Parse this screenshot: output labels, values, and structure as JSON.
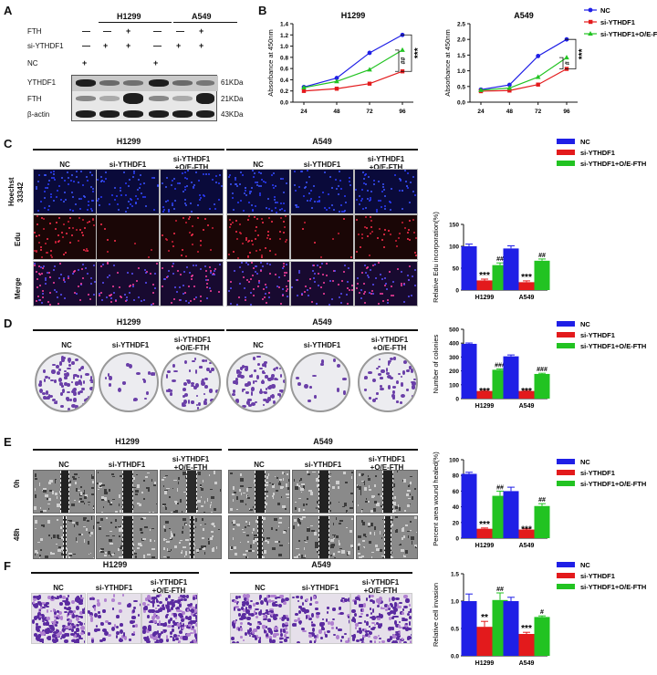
{
  "panels": {
    "a": "A",
    "b": "B",
    "c": "C",
    "d": "D",
    "e": "E",
    "f": "F"
  },
  "western": {
    "groups": [
      "H1299",
      "A549"
    ],
    "rows": [
      {
        "label": "FTH",
        "marks": [
          "—",
          "—",
          "+",
          "—",
          "—",
          "+"
        ]
      },
      {
        "label": "si-YTHDF1",
        "marks": [
          "—",
          "+",
          "+",
          "—",
          "+",
          "+"
        ]
      },
      {
        "label": "NC",
        "marks": [
          "+",
          "",
          "",
          "+",
          "",
          ""
        ]
      }
    ],
    "bands": [
      {
        "label": "YTHDF1",
        "size": "61KDa"
      },
      {
        "label": "FTH",
        "size": "21KDa"
      },
      {
        "label": "β-actin",
        "size": "43KDa"
      }
    ]
  },
  "legend_labels": [
    "NC",
    "si-YTHDF1",
    "si-YTHDF1+O/E-FTH"
  ],
  "colors": {
    "nc": "#1f1fe6",
    "si": "#e31a1c",
    "fth": "#22c322"
  },
  "cck8": {
    "ylabel": "Absorbance at 450nm",
    "charts": [
      {
        "title": "H1299",
        "sig_outer": "***",
        "sig_inner": "##"
      },
      {
        "title": "A549",
        "sig_outer": "***",
        "sig_inner": "#"
      }
    ]
  },
  "edu": {
    "groups": [
      "H1299",
      "A549"
    ],
    "conditions": [
      "NC",
      "si-YTHDF1",
      "si-YTHDF1",
      "+O/E-FTH"
    ],
    "rows": [
      "Hoechst",
      "33342",
      "Edu",
      "Merge"
    ],
    "ylabel": "Relative Edu incorporation(%)"
  },
  "colony": {
    "groups": [
      "H1299",
      "A549"
    ],
    "conditions": [
      "NC",
      "si-YTHDF1",
      "si-YTHDF1",
      "+O/E-FTH"
    ],
    "ylabel": "Number of colonies"
  },
  "wound": {
    "groups": [
      "H1299",
      "A549"
    ],
    "conditions": [
      "NC",
      "si-YTHDF1",
      "si-YTHDF1",
      "+O/E-FTH"
    ],
    "rows": [
      "0h",
      "48h"
    ],
    "ylabel": "Percent area wound healed(%)"
  },
  "invasion": {
    "groups": [
      "H1299",
      "A549"
    ],
    "conditions": [
      "NC",
      "si-YTHDF1",
      "si-YTHDF1",
      "+O/E-FTH"
    ],
    "ylabel": "Relative cell invasion"
  },
  "chart_data": [
    {
      "type": "line",
      "title": "H1299",
      "xlabel": "",
      "ylabel": "Absorbance at 450nm",
      "x": [
        24,
        48,
        72,
        96
      ],
      "ylim": [
        0,
        1.4
      ],
      "yticks": [
        0.0,
        0.2,
        0.4,
        0.6,
        0.8,
        1.0,
        1.2,
        1.4
      ],
      "series": [
        {
          "name": "NC",
          "values": [
            0.27,
            0.43,
            0.88,
            1.2
          ]
        },
        {
          "name": "si-YTHDF1",
          "values": [
            0.2,
            0.24,
            0.33,
            0.55
          ]
        },
        {
          "name": "si-YTHDF1+O/E-FTH",
          "values": [
            0.26,
            0.37,
            0.58,
            0.93
          ]
        }
      ]
    },
    {
      "type": "line",
      "title": "A549",
      "xlabel": "",
      "ylabel": "Absorbance at 450nm",
      "x": [
        24,
        48,
        72,
        96
      ],
      "ylim": [
        0,
        2.5
      ],
      "yticks": [
        0.0,
        0.5,
        1.0,
        1.5,
        2.0,
        2.5
      ],
      "series": [
        {
          "name": "NC",
          "values": [
            0.4,
            0.55,
            1.47,
            2.0
          ]
        },
        {
          "name": "si-YTHDF1",
          "values": [
            0.35,
            0.37,
            0.56,
            1.06
          ]
        },
        {
          "name": "si-YTHDF1+O/E-FTH",
          "values": [
            0.38,
            0.45,
            0.8,
            1.42
          ]
        }
      ]
    },
    {
      "type": "bar",
      "title": "",
      "ylabel": "Relative Edu incorporation(%)",
      "categories": [
        "H1299",
        "A549"
      ],
      "ylim": [
        0,
        150
      ],
      "yticks": [
        0,
        50,
        100,
        150
      ],
      "series": [
        {
          "name": "NC",
          "values": [
            100,
            95
          ],
          "errors": [
            5,
            6
          ]
        },
        {
          "name": "si-YTHDF1",
          "values": [
            22,
            18
          ],
          "errors": [
            3,
            3
          ],
          "marks": [
            "***",
            "***"
          ]
        },
        {
          "name": "si-YTHDF1+O/E-FTH",
          "values": [
            57,
            67
          ],
          "errors": [
            5,
            4
          ],
          "marks": [
            "##",
            "##"
          ]
        }
      ]
    },
    {
      "type": "bar",
      "title": "",
      "ylabel": "Number of colonies",
      "categories": [
        "H1299",
        "A549"
      ],
      "ylim": [
        0,
        500
      ],
      "yticks": [
        0,
        100,
        200,
        300,
        400,
        500
      ],
      "series": [
        {
          "name": "NC",
          "values": [
            395,
            305
          ],
          "errors": [
            6,
            10
          ]
        },
        {
          "name": "si-YTHDF1",
          "values": [
            55,
            55
          ],
          "errors": [
            4,
            4
          ],
          "marks": [
            "***",
            "***"
          ]
        },
        {
          "name": "si-YTHDF1+O/E-FTH",
          "values": [
            208,
            178
          ],
          "errors": [
            6,
            5
          ],
          "marks": [
            "###",
            "###"
          ]
        }
      ]
    },
    {
      "type": "bar",
      "title": "",
      "ylabel": "Percent area wound healed(%)",
      "categories": [
        "H1299",
        "A549"
      ],
      "ylim": [
        0,
        100
      ],
      "yticks": [
        0,
        20,
        40,
        60,
        80,
        100
      ],
      "series": [
        {
          "name": "NC",
          "values": [
            82,
            60
          ],
          "errors": [
            2,
            5
          ]
        },
        {
          "name": "si-YTHDF1",
          "values": [
            12,
            11
          ],
          "errors": [
            1,
            1
          ],
          "marks": [
            "***",
            "***"
          ]
        },
        {
          "name": "si-YTHDF1+O/E-FTH",
          "values": [
            54,
            41
          ],
          "errors": [
            6,
            3
          ],
          "marks": [
            "##",
            "##"
          ]
        }
      ]
    },
    {
      "type": "bar",
      "title": "",
      "ylabel": "Relative cell invasion",
      "categories": [
        "H1299",
        "A549"
      ],
      "ylim": [
        0,
        1.5
      ],
      "yticks": [
        0.0,
        0.5,
        1.0,
        1.5
      ],
      "series": [
        {
          "name": "NC",
          "values": [
            1.0,
            1.0
          ],
          "errors": [
            0.13,
            0.07
          ]
        },
        {
          "name": "si-YTHDF1",
          "values": [
            0.53,
            0.4
          ],
          "errors": [
            0.1,
            0.03
          ],
          "marks": [
            "**",
            "***"
          ]
        },
        {
          "name": "si-YTHDF1+O/E-FTH",
          "values": [
            1.02,
            0.71
          ],
          "errors": [
            0.13,
            0.02
          ],
          "marks": [
            "##",
            "#"
          ]
        }
      ]
    }
  ]
}
